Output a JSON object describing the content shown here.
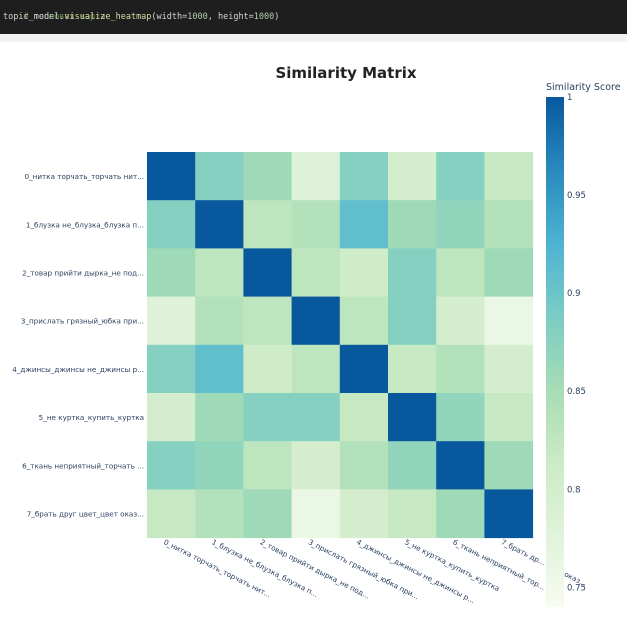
{
  "code_cell": {
    "comment": "# тепловая карта",
    "code_obj": "topic_model.",
    "code_fn": "visualize_heatmap",
    "code_args_open": "(width=",
    "code_width": "1000",
    "code_sep": ", height=",
    "code_height": "1000",
    "code_args_close": ")"
  },
  "colors": {
    "code_bg": "#1e1e1e",
    "scale": [
      "#f7fcf0",
      "#e0f3db",
      "#ccebc5",
      "#a8ddb5",
      "#7bccc4",
      "#4eb3d3",
      "#2b8cbe",
      "#08589e"
    ]
  },
  "chart_data": {
    "type": "heatmap",
    "title": "Similarity Matrix",
    "colorbar_title": "Similarity Score",
    "colorbar_range": [
      0.74,
      1.0
    ],
    "colorbar_ticks": [
      {
        "value": 1.0,
        "label": "1"
      },
      {
        "value": 0.95,
        "label": "0.95"
      },
      {
        "value": 0.9,
        "label": "0.9"
      },
      {
        "value": 0.85,
        "label": "0.85"
      },
      {
        "value": 0.8,
        "label": "0.8"
      },
      {
        "value": 0.75,
        "label": "0.75"
      }
    ],
    "y_labels": [
      "0_нитка торчать_торчать нит...",
      "1_блузка не_блузка_блузка п...",
      "2_товар прийти дырка_не под...",
      "3_прислать грязный_юбка при...",
      "4_джинсы_джинсы не_джинсы р...",
      "5_не куртка_купить_куртка",
      "6_ткань неприятный_торчать ...",
      "7_брать друг цвет_цвет оказ..."
    ],
    "x_labels": [
      "0_нитка торчать_торчать нит...",
      "1_блузка не_блузка_блузка п...",
      "2_товар прийти дырка_не под...",
      "3_прислать грязный_юбка при...",
      "4_джинсы_джинсы не_джинсы р...",
      "5_не куртка_купить_куртка",
      "6_ткань неприятный_тор...",
      "7_брать др... цвет оказ..."
    ],
    "values": [
      [
        1.0,
        0.88,
        0.86,
        0.78,
        0.88,
        0.8,
        0.88,
        0.82
      ],
      [
        0.88,
        1.0,
        0.83,
        0.84,
        0.91,
        0.86,
        0.87,
        0.84
      ],
      [
        0.86,
        0.83,
        1.0,
        0.83,
        0.81,
        0.88,
        0.83,
        0.86
      ],
      [
        0.78,
        0.84,
        0.83,
        1.0,
        0.83,
        0.88,
        0.8,
        0.76
      ],
      [
        0.88,
        0.91,
        0.81,
        0.83,
        1.0,
        0.82,
        0.84,
        0.8
      ],
      [
        0.8,
        0.86,
        0.88,
        0.88,
        0.82,
        1.0,
        0.87,
        0.82
      ],
      [
        0.88,
        0.87,
        0.83,
        0.8,
        0.84,
        0.87,
        1.0,
        0.86
      ],
      [
        0.82,
        0.84,
        0.86,
        0.76,
        0.8,
        0.82,
        0.86,
        1.0
      ]
    ]
  }
}
